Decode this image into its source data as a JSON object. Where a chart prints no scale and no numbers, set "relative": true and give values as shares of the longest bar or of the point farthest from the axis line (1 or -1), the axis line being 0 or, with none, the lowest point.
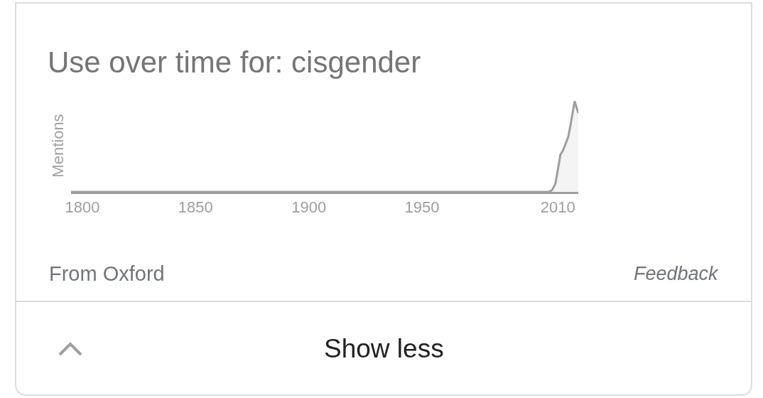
{
  "chart_data": {
    "type": "area",
    "title": "Use over time for: cisgender",
    "ylabel": "Mentions",
    "relative": true,
    "x": [
      1795,
      2006,
      2007.4,
      2008.9,
      2011.1,
      2012.3,
      2014.6,
      2015.5,
      2017.4,
      2019
    ],
    "xlim": [
      1795,
      2019
    ],
    "xticks": [
      1800,
      1850,
      1900,
      1950,
      2010
    ],
    "series": [
      {
        "color": "#9e9e9e",
        "values": [
          0,
          0,
          0.02,
          0.09,
          0.41,
          0.46,
          0.61,
          0.73,
          1,
          0.87
        ]
      }
    ],
    "annotations": [
      "From Oxford",
      "Feedback",
      "Show less"
    ]
  }
}
